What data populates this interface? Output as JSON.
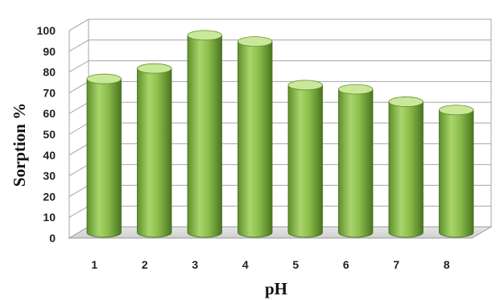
{
  "chart_data": {
    "type": "bar",
    "style": "3d-cylinder",
    "xlabel": "pH",
    "ylabel": "Sorption %",
    "categories": [
      "1",
      "2",
      "3",
      "4",
      "5",
      "6",
      "7",
      "8"
    ],
    "series": [
      {
        "values": [
          74,
          79,
          95,
          92,
          71,
          69,
          63,
          59
        ]
      }
    ],
    "ylim": [
      0,
      100
    ],
    "yticks": [
      0,
      10,
      20,
      30,
      40,
      50,
      60,
      70,
      80,
      90,
      100
    ],
    "grid": true,
    "legend": "none",
    "colors": {
      "bar": "#8dbf4c",
      "bar_dark": "#4d7a22",
      "bar_light": "#c9e89a",
      "grid": "#a6a6a6"
    }
  }
}
